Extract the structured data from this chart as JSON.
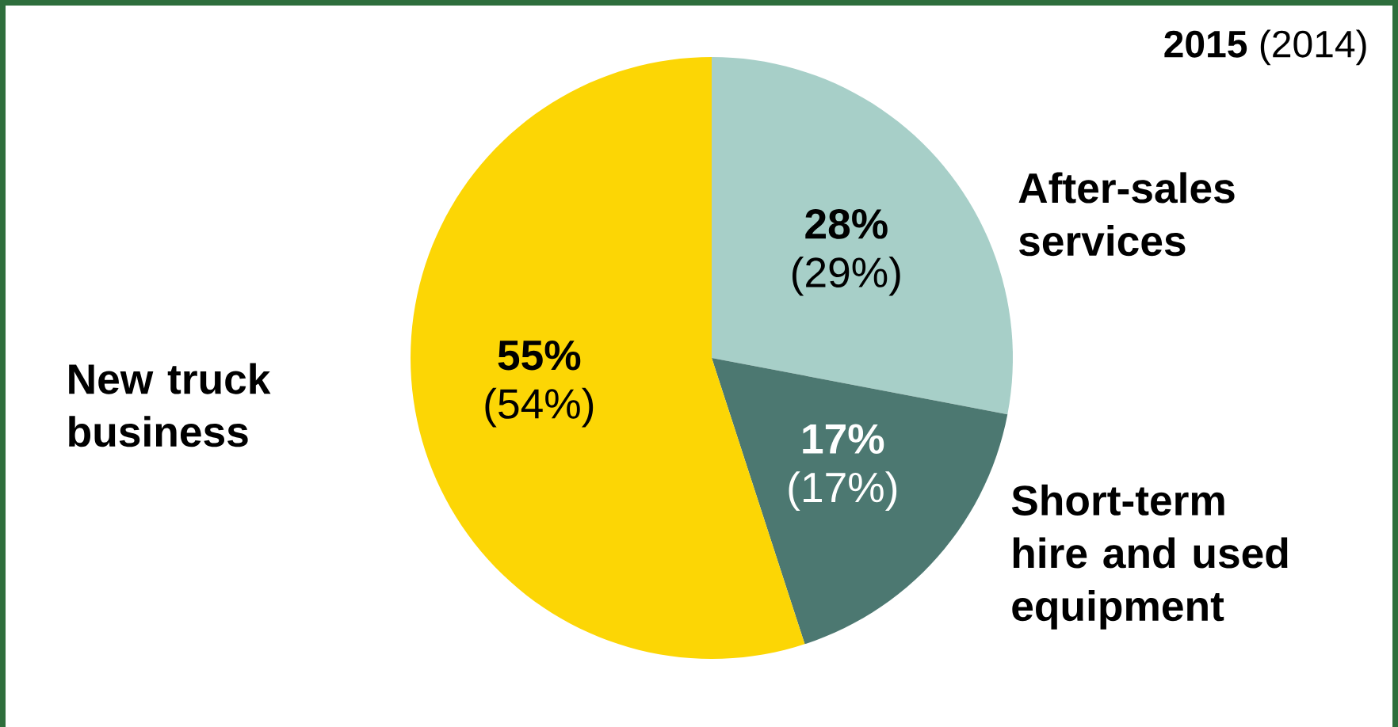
{
  "chart_data": {
    "type": "pie",
    "title": "**2015** (2014)",
    "categories": [
      "After-sales services",
      "Short-term hire and used equipment",
      "New truck business"
    ],
    "values": [
      28,
      17,
      55
    ],
    "colors": [
      "#a7cfc8",
      "#4c7871",
      "#fcd605"
    ],
    "value_labels": [
      "28%",
      "17%",
      "55%"
    ],
    "annotations": [
      {
        "text": "(29%)",
        "x": "After-sales services"
      },
      {
        "text": "(17%)",
        "x": "Short-term hire and used equipment"
      },
      {
        "text": "(54%)",
        "x": "New truck business"
      }
    ]
  }
}
